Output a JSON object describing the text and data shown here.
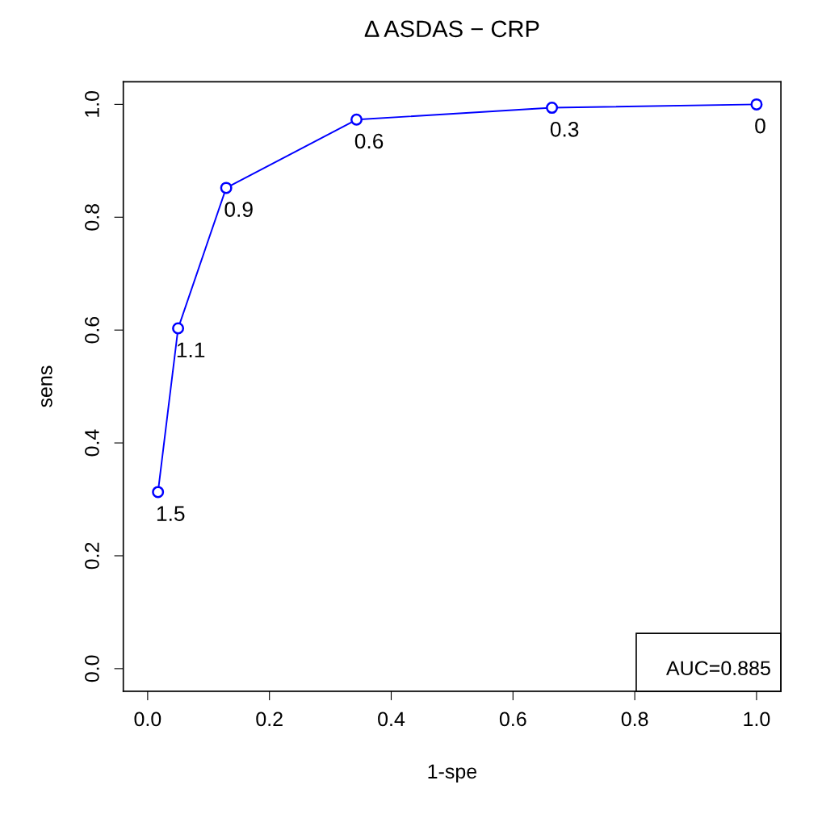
{
  "chart_data": {
    "type": "line",
    "title": "Δ ASDAS − CRP",
    "xlabel": "1-spe",
    "ylabel": "sens",
    "x": [
      0.017,
      0.05,
      0.129,
      0.343,
      0.664,
      1.0
    ],
    "series": [
      {
        "color": "#0000ff",
        "values": [
          0.313,
          0.603,
          0.852,
          0.973,
          0.994,
          1.0
        ]
      }
    ],
    "marker": "circle",
    "line_style": "solid",
    "grid": false,
    "legend": false,
    "xlim": [
      -0.04,
      1.04
    ],
    "ylim": [
      -0.04,
      1.04
    ],
    "xticks": [
      {
        "value": 0,
        "label": "0.0"
      },
      0.2,
      0.4,
      0.6,
      0.8,
      {
        "value": 1,
        "label": "1.0"
      }
    ],
    "yticks": [
      {
        "value": 0,
        "label": "0.0"
      },
      0.2,
      0.4,
      0.6,
      0.8,
      {
        "value": 1,
        "label": "1.0"
      }
    ],
    "annotations": [
      {
        "text": "1.5",
        "x": 0.017,
        "y": 0.313
      },
      {
        "text": "1.1",
        "x": 0.05,
        "y": 0.603
      },
      {
        "text": "0.9",
        "x": 0.129,
        "y": 0.852
      },
      {
        "text": "0.6",
        "x": 0.343,
        "y": 0.973
      },
      {
        "text": "0.3",
        "x": 0.664,
        "y": 0.994
      },
      {
        "text": "0",
        "x": 1.0,
        "y": 1.0
      },
      "AUC=0.885"
    ]
  }
}
